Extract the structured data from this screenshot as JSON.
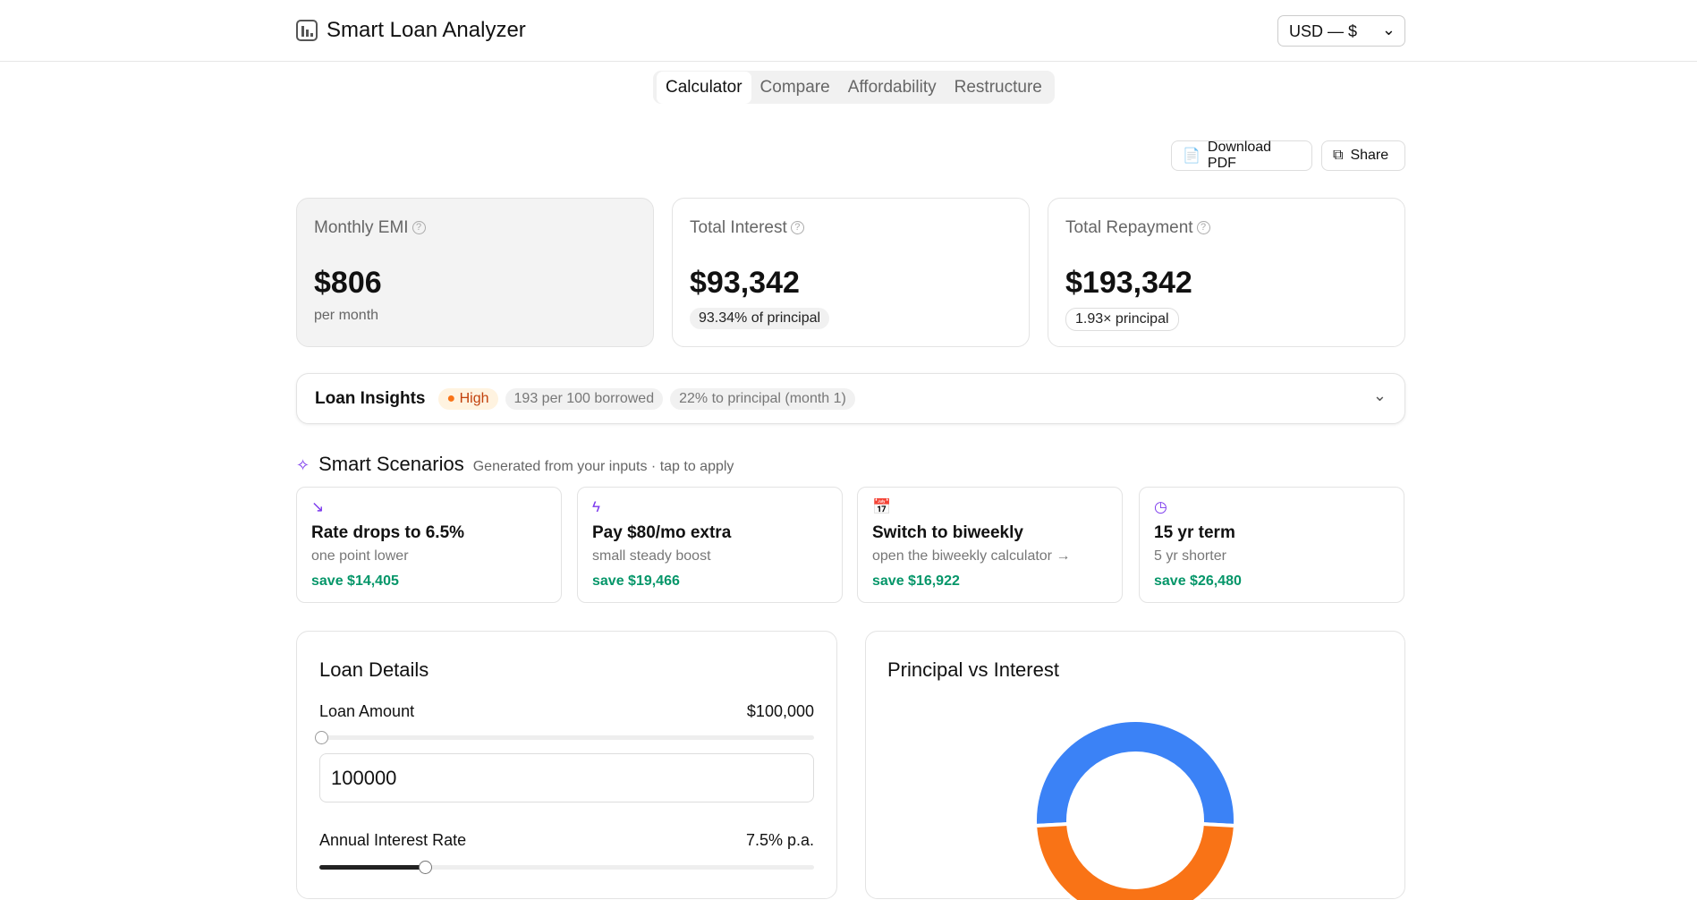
{
  "header": {
    "title": "Smart Loan Analyzer",
    "currency": "USD — $"
  },
  "tabs": [
    "Calculator",
    "Compare",
    "Affordability",
    "Restructure"
  ],
  "actions": [
    "Download PDF",
    "Share"
  ],
  "stats": [
    {
      "label": "Monthly EMI",
      "value": "$806",
      "note": "per month"
    },
    {
      "label": "Total Interest",
      "value": "$93,342",
      "note": "93.34% of principal"
    },
    {
      "label": "Total Repayment",
      "value": "$193,342",
      "note": "1.93× principal"
    }
  ],
  "insights": {
    "title": "Loan Insights",
    "level": "High",
    "chips": [
      "193 per 100 borrowed",
      "22% to principal (month 1)"
    ]
  },
  "scenarios": {
    "title": "Smart Scenarios",
    "subtitle": "Generated from your inputs · tap to apply",
    "items": [
      {
        "title": "Rate drops to 6.5%",
        "note": "one point lower",
        "save": "save $14,405"
      },
      {
        "title": "Pay $80/mo extra",
        "note": "small steady boost",
        "save": "save $19,466"
      },
      {
        "title": "Switch to biweekly",
        "note": "open the biweekly calculator →",
        "save": "save $16,922"
      },
      {
        "title": "15 yr term",
        "note": "5 yr shorter",
        "save": "save $26,480"
      }
    ]
  },
  "loan_details": {
    "title": "Loan Details",
    "amount_label": "Loan Amount",
    "amount_value": "$100,000",
    "amount_input": "100000",
    "rate_label": "Annual Interest Rate",
    "rate_value": "7.5% p.a."
  },
  "chart_data": {
    "type": "pie",
    "title": "Principal vs Interest",
    "values": [
      100000,
      93342
    ],
    "colors": [
      "#3b82f6",
      "#f97316"
    ]
  }
}
